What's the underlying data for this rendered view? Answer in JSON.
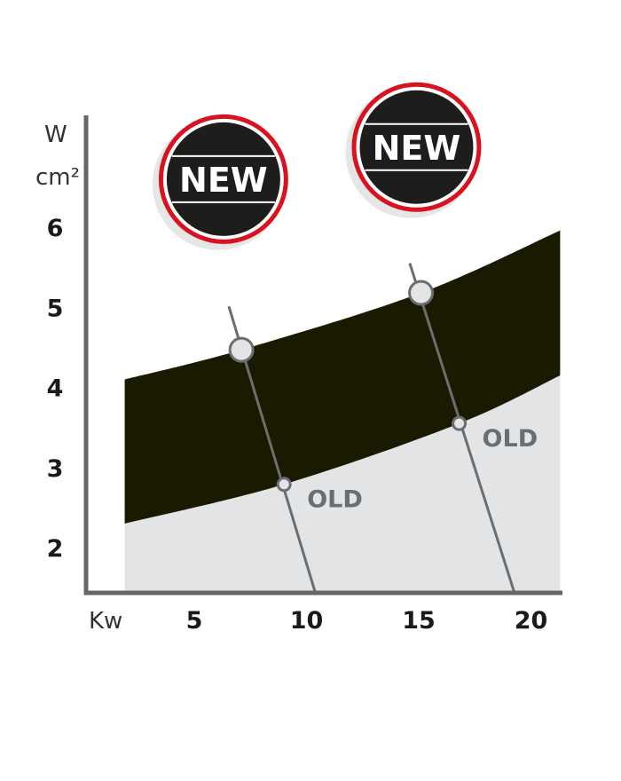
{
  "chart_data": {
    "type": "area",
    "title": "",
    "xlabel": "Kw",
    "ylabel": [
      "W",
      "cm²"
    ],
    "xlim": [
      1.9,
      21.3
    ],
    "ylim": [
      1.43,
      7.4
    ],
    "x_ticks": [
      "5",
      "10",
      "15",
      "20"
    ],
    "y_ticks": [
      "2",
      "3",
      "4",
      "5",
      "6"
    ],
    "grid": false,
    "band": {
      "upper": [
        [
          1.9,
          4.1
        ],
        [
          7.1,
          4.47
        ],
        [
          15.1,
          5.18
        ],
        [
          21.3,
          5.96
        ]
      ],
      "lower": [
        [
          1.9,
          2.3
        ],
        [
          9.0,
          2.79
        ],
        [
          16.8,
          3.55
        ],
        [
          21.3,
          4.15
        ]
      ],
      "color": "#1a1a00"
    },
    "below_fill_color": "#e3e4e6",
    "lines": [
      {
        "from": [
          6.54,
          5.01
        ],
        "to": [
          10.4,
          1.43
        ],
        "new_point": [
          7.1,
          4.47
        ],
        "old_point": [
          9.0,
          2.79
        ],
        "old_label": "OLD"
      },
      {
        "from": [
          14.6,
          5.55
        ],
        "to": [
          19.27,
          1.43
        ],
        "new_point": [
          15.1,
          5.18
        ],
        "old_point": [
          16.8,
          3.55
        ],
        "old_label": "OLD"
      }
    ],
    "badges": [
      {
        "label": "NEW",
        "near_x": 6.3,
        "near_y": 6.6
      },
      {
        "label": "NEW",
        "near_x": 14.9,
        "near_y": 7.0
      }
    ],
    "badge_colors": {
      "ring": "#d9121f",
      "fill": "#1d1d1b"
    }
  }
}
